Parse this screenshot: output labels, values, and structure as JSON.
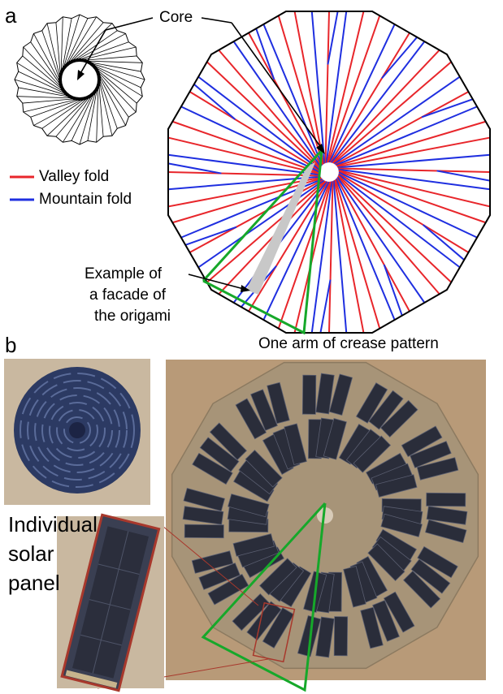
{
  "panel_a": {
    "letter": "a",
    "core_label": "Core",
    "legend": [
      {
        "label": "Valley fold",
        "color": "#e8262b"
      },
      {
        "label": "Mountain fold",
        "color": "#1f2fe0"
      }
    ],
    "facade_label": [
      "Example of",
      "a facade of",
      "the origami"
    ],
    "arm_label": "One arm of crease pattern",
    "highlight_color": "#16a82a",
    "facade_fill": "#c8c8c8"
  },
  "panel_b": {
    "letter": "b",
    "panel_label": [
      "Individual",
      "solar",
      "panel"
    ],
    "photo_bg": "#b89a78",
    "folded_photo_color": "#2c3a63",
    "cell_color": "#2a2d3a",
    "inset_border": "#a8382c"
  }
}
